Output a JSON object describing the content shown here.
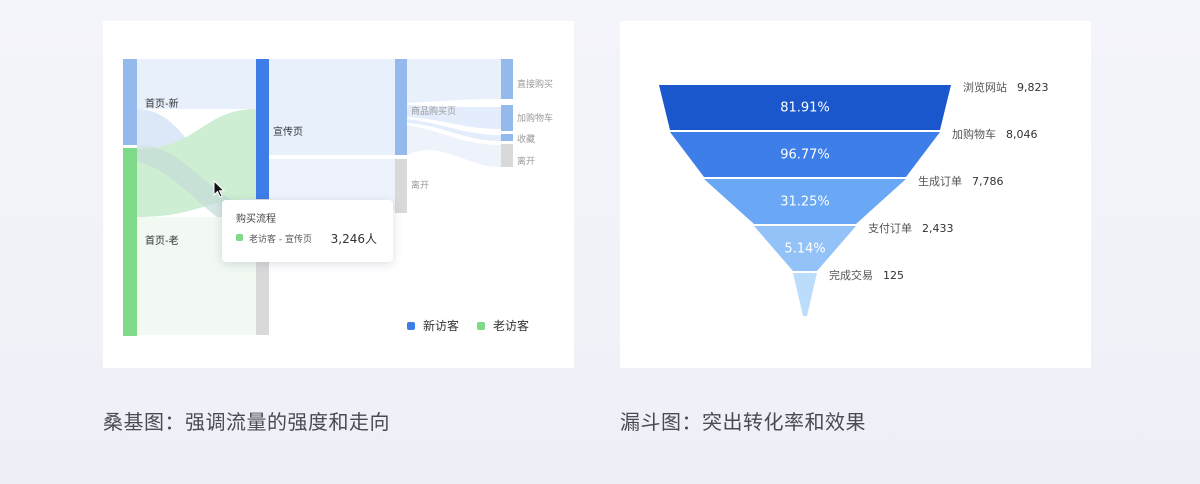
{
  "captions": {
    "sankey": "桑基图：强调流量的强度和走向",
    "funnel": "漏斗图：突出转化率和效果"
  },
  "colors": {
    "new_visitor": "#3e7ce8",
    "old_visitor": "#7ed988",
    "funnel": [
      "#1a56cc",
      "#3d7ee8",
      "#6aa7f4",
      "#93c2f8",
      "#bcdcfc"
    ]
  },
  "chart_data": [
    {
      "type": "sankey",
      "nodes": [
        "首页-新",
        "首页-老",
        "宣传页",
        "商品购买页",
        "离开",
        "直接购买",
        "加购物车",
        "收藏",
        "离开"
      ],
      "tooltip": {
        "title": "购买流程",
        "series": "老访客",
        "link": "宣传页",
        "value": "3,246人"
      },
      "legend": [
        "新访客",
        "老访客"
      ],
      "legend_position": "bottom-right"
    },
    {
      "type": "funnel",
      "stages": [
        {
          "label": "浏览网站",
          "value": 9823,
          "value_text": "9,823",
          "rate": "81.91%"
        },
        {
          "label": "加购物车",
          "value": 8046,
          "value_text": "8,046",
          "rate": "96.77%"
        },
        {
          "label": "生成订单",
          "value": 7786,
          "value_text": "7,786",
          "rate": "31.25%"
        },
        {
          "label": "支付订单",
          "value": 2433,
          "value_text": "2,433",
          "rate": "5.14%"
        },
        {
          "label": "完成交易",
          "value": 125,
          "value_text": "125",
          "rate": ""
        }
      ]
    }
  ]
}
